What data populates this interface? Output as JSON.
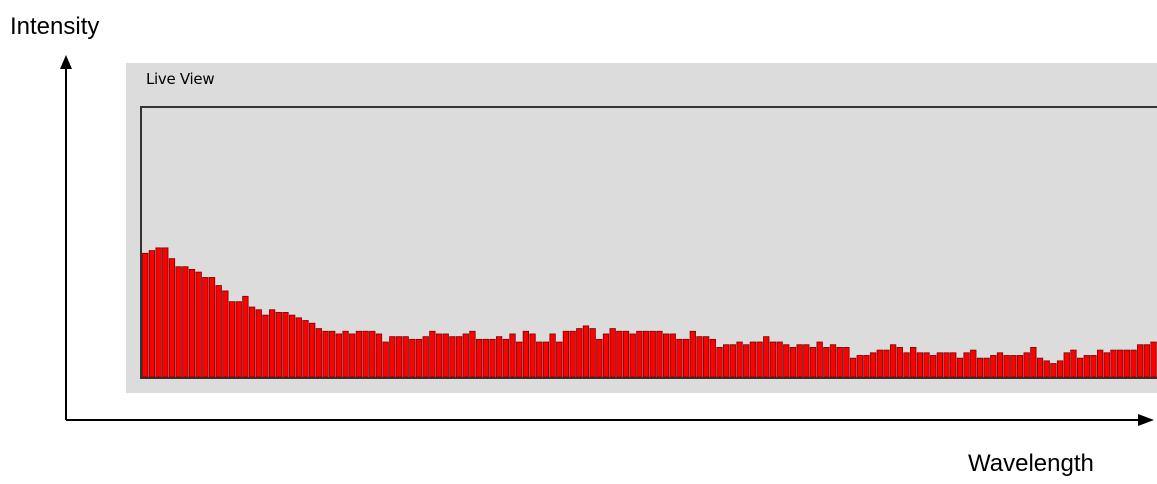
{
  "axes": {
    "y_label": "Intensity",
    "x_label": "Wavelength"
  },
  "panel": {
    "title": "Live View"
  },
  "colors": {
    "bar_fill": "#ff0000",
    "bar_edge": "#7a0000",
    "panel_bg": "#dcdcdc"
  },
  "chart_data": {
    "type": "bar",
    "title": "Live View",
    "xlabel": "Wavelength",
    "ylabel": "Intensity",
    "ylim": [
      0,
      1
    ],
    "grid": false,
    "values": [
      0.46,
      0.47,
      0.48,
      0.48,
      0.44,
      0.41,
      0.41,
      0.4,
      0.39,
      0.37,
      0.37,
      0.34,
      0.32,
      0.28,
      0.28,
      0.3,
      0.26,
      0.25,
      0.23,
      0.25,
      0.24,
      0.24,
      0.23,
      0.22,
      0.21,
      0.2,
      0.18,
      0.17,
      0.17,
      0.16,
      0.17,
      0.16,
      0.17,
      0.17,
      0.17,
      0.16,
      0.13,
      0.15,
      0.15,
      0.15,
      0.14,
      0.14,
      0.15,
      0.17,
      0.16,
      0.16,
      0.15,
      0.15,
      0.16,
      0.17,
      0.14,
      0.14,
      0.14,
      0.15,
      0.14,
      0.16,
      0.13,
      0.17,
      0.16,
      0.13,
      0.13,
      0.16,
      0.13,
      0.17,
      0.17,
      0.18,
      0.19,
      0.18,
      0.14,
      0.16,
      0.18,
      0.17,
      0.17,
      0.16,
      0.17,
      0.17,
      0.17,
      0.17,
      0.16,
      0.16,
      0.14,
      0.14,
      0.17,
      0.15,
      0.15,
      0.14,
      0.11,
      0.12,
      0.12,
      0.13,
      0.12,
      0.13,
      0.13,
      0.15,
      0.13,
      0.13,
      0.12,
      0.11,
      0.12,
      0.12,
      0.11,
      0.13,
      0.11,
      0.12,
      0.11,
      0.11,
      0.07,
      0.08,
      0.08,
      0.09,
      0.1,
      0.1,
      0.12,
      0.11,
      0.09,
      0.11,
      0.09,
      0.09,
      0.08,
      0.09,
      0.09,
      0.09,
      0.07,
      0.09,
      0.1,
      0.07,
      0.07,
      0.08,
      0.09,
      0.08,
      0.08,
      0.08,
      0.09,
      0.11,
      0.07,
      0.06,
      0.05,
      0.06,
      0.09,
      0.1,
      0.07,
      0.08,
      0.08,
      0.1,
      0.09,
      0.1,
      0.1,
      0.1,
      0.1,
      0.12,
      0.12,
      0.13
    ]
  }
}
